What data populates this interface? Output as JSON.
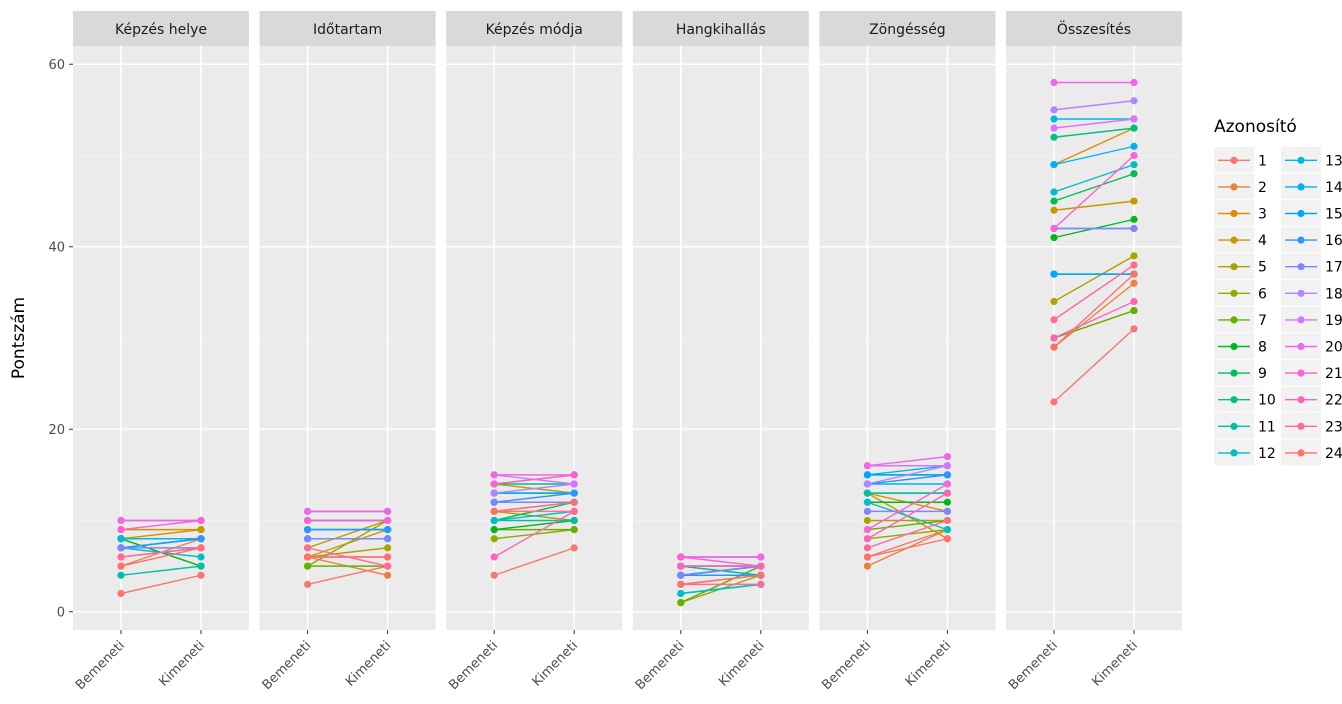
{
  "chart_data": {
    "type": "line",
    "ylabel": "Pontszám",
    "xlabel": "",
    "ylim": [
      -2,
      62
    ],
    "y_ticks": [
      0,
      20,
      40,
      60
    ],
    "x_categories": [
      "Bemeneti",
      "Kimeneti"
    ],
    "panels": [
      "Képzés helye",
      "Időtartam",
      "Képzés módja",
      "Hangkihallás",
      "Zöngésség",
      "Összesítés"
    ],
    "legend": {
      "title": "Azonosító",
      "position": "right",
      "ids": [
        "1",
        "2",
        "3",
        "4",
        "5",
        "6",
        "7",
        "8",
        "9",
        "10",
        "11",
        "12",
        "13",
        "14",
        "15",
        "16",
        "17",
        "18",
        "19",
        "20",
        "21",
        "22",
        "23",
        "24"
      ],
      "colors": [
        "#F8766D",
        "#EC8239",
        "#DB8E00",
        "#C79800",
        "#AEA200",
        "#8FAA00",
        "#64B200",
        "#00B81B",
        "#00BD5C",
        "#00C085",
        "#00C1A7",
        "#00BFC4",
        "#00BADE",
        "#00B2F3",
        "#00A6FF",
        "#2C96FF",
        "#7C86FF",
        "#B385FF",
        "#D874FD",
        "#EF67EB",
        "#FD61D3",
        "#FF62B7",
        "#FF6B94",
        "#FF716B"
      ]
    },
    "grid": true,
    "series": [
      {
        "name": "1",
        "values": {
          "Képzés helye": [
            2,
            4
          ],
          "Időtartam": [
            3,
            5
          ],
          "Képzés módja": [
            4,
            7
          ],
          "Hangkihallás": [
            3,
            4
          ],
          "Zöngésség": [
            6,
            9
          ],
          "Összesítés": [
            23,
            31
          ]
        }
      },
      {
        "name": "2",
        "values": {
          "Képzés helye": [
            5,
            8
          ],
          "Időtartam": [
            6,
            4
          ],
          "Képzés módja": [
            11,
            12
          ],
          "Hangkihallás": [
            4,
            4
          ],
          "Zöngésség": [
            5,
            9
          ],
          "Összesítés": [
            29,
            36
          ]
        }
      },
      {
        "name": "3",
        "values": {
          "Képzés helye": [
            9,
            9
          ],
          "Időtartam": [
            6,
            9
          ],
          "Képzés módja": [
            14,
            15
          ],
          "Hangkihallás": [
            5,
            5
          ],
          "Zöngésség": [
            13,
            11
          ],
          "Összesítés": [
            49,
            53
          ]
        }
      },
      {
        "name": "4",
        "values": {
          "Képzés helye": [
            8,
            9
          ],
          "Időtartam": [
            7,
            10
          ],
          "Képzés módja": [
            14,
            13
          ],
          "Hangkihallás": [
            5,
            5
          ],
          "Zöngésség": [
            13,
            8
          ],
          "Összesítés": [
            44,
            45
          ]
        }
      },
      {
        "name": "5",
        "values": {
          "Képzés helye": [
            8,
            8
          ],
          "Időtartam": [
            6,
            7
          ],
          "Képzés módja": [
            11,
            10
          ],
          "Hangkihallás": [
            1,
            5
          ],
          "Zöngésség": [
            10,
            10
          ],
          "Összesítés": [
            34,
            39
          ]
        }
      },
      {
        "name": "6",
        "values": {
          "Képzés helye": [
            8,
            8
          ],
          "Időtartam": [
            5,
            10
          ],
          "Képzés módja": [
            8,
            9
          ],
          "Hangkihallás": [
            1,
            4
          ],
          "Zöngésség": [
            8,
            9
          ],
          "Összesítés": [
            30,
            33
          ]
        }
      },
      {
        "name": "7",
        "values": {
          "Képzés helye": [
            8,
            5
          ],
          "Időtartam": [
            5,
            5
          ],
          "Képzés módja": [
            9,
            9
          ],
          "Hangkihallás": [
            1,
            5
          ],
          "Zöngésség": [
            9,
            10
          ],
          "Összesítés": [
            30,
            33
          ]
        }
      },
      {
        "name": "8",
        "values": {
          "Képzés helye": [
            8,
            5
          ],
          "Időtartam": [
            8,
            8
          ],
          "Képzés módja": [
            9,
            10
          ],
          "Hangkihallás": [
            4,
            5
          ],
          "Zöngésség": [
            12,
            12
          ],
          "Összesítés": [
            41,
            43
          ]
        }
      },
      {
        "name": "9",
        "values": {
          "Képzés helye": [
            8,
            8
          ],
          "Időtartam": [
            10,
            10
          ],
          "Képzés módja": [
            10,
            12
          ],
          "Hangkihallás": [
            4,
            5
          ],
          "Zöngésség": [
            13,
            13
          ],
          "Összesítés": [
            45,
            48
          ]
        }
      },
      {
        "name": "10",
        "values": {
          "Képzés helye": [
            8,
            8
          ],
          "Időtartam": [
            10,
            10
          ],
          "Képzés módja": [
            14,
            14
          ],
          "Hangkihallás": [
            5,
            4
          ],
          "Zöngésség": [
            15,
            15
          ],
          "Összesítés": [
            52,
            53
          ]
        }
      },
      {
        "name": "11",
        "values": {
          "Képzés helye": [
            4,
            5
          ],
          "Időtartam": [
            9,
            9
          ],
          "Képzés módja": [
            10,
            10
          ],
          "Hangkihallás": [
            2,
            3
          ],
          "Zöngésség": [
            13,
            13
          ],
          "Összesítés": [
            37,
            37
          ]
        }
      },
      {
        "name": "12",
        "values": {
          "Képzés helye": [
            7,
            6
          ],
          "Időtartam": [
            9,
            9
          ],
          "Képzés módja": [
            10,
            11
          ],
          "Hangkihallás": [
            2,
            3
          ],
          "Zöngésség": [
            12,
            9
          ],
          "Összesítés": [
            46,
            49
          ]
        }
      },
      {
        "name": "13",
        "values": {
          "Képzés helye": [
            8,
            8
          ],
          "Időtartam": [
            11,
            11
          ],
          "Képzés módja": [
            13,
            13
          ],
          "Hangkihallás": [
            5,
            5
          ],
          "Zöngésség": [
            15,
            16
          ],
          "Összesítés": [
            54,
            54
          ]
        }
      },
      {
        "name": "14",
        "values": {
          "Képzés helye": [
            7,
            8
          ],
          "Időtartam": [
            8,
            8
          ],
          "Képzés módja": [
            12,
            12
          ],
          "Hangkihallás": [
            4,
            5
          ],
          "Zöngésség": [
            14,
            14
          ],
          "Összesítés": [
            49,
            51
          ]
        }
      },
      {
        "name": "15",
        "values": {
          "Képzés helye": [
            7,
            8
          ],
          "Időtartam": [
            9,
            9
          ],
          "Képzés módja": [
            13,
            13
          ],
          "Hangkihallás": [
            4,
            4
          ],
          "Zöngésség": [
            15,
            15
          ],
          "Összesítés": [
            37,
            37
          ]
        }
      },
      {
        "name": "16",
        "values": {
          "Képzés helye": [
            7,
            8
          ],
          "Időtartam": [
            9,
            9
          ],
          "Képzés módja": [
            12,
            13
          ],
          "Hangkihallás": [
            4,
            4
          ],
          "Zöngésség": [
            14,
            15
          ],
          "Összesítés": [
            42,
            42
          ]
        }
      },
      {
        "name": "17",
        "values": {
          "Képzés helye": [
            7,
            7
          ],
          "Időtartam": [
            8,
            8
          ],
          "Képzés módja": [
            12,
            12
          ],
          "Hangkihallás": [
            4,
            5
          ],
          "Zöngésség": [
            11,
            11
          ],
          "Összesítés": [
            42,
            42
          ]
        }
      },
      {
        "name": "18",
        "values": {
          "Képzés helye": [
            10,
            10
          ],
          "Időtartam": [
            10,
            10
          ],
          "Képzés módja": [
            13,
            14
          ],
          "Hangkihallás": [
            6,
            6
          ],
          "Zöngésség": [
            14,
            16
          ],
          "Összesítés": [
            55,
            56
          ]
        }
      },
      {
        "name": "19",
        "values": {
          "Képzés helye": [
            10,
            10
          ],
          "Időtartam": [
            11,
            11
          ],
          "Képzés módja": [
            15,
            14
          ],
          "Hangkihallás": [
            6,
            6
          ],
          "Zöngésség": [
            16,
            16
          ],
          "Összesítés": [
            53,
            54
          ]
        }
      },
      {
        "name": "20",
        "values": {
          "Képzés helye": [
            10,
            10
          ],
          "Időtartam": [
            11,
            11
          ],
          "Képzés módja": [
            15,
            15
          ],
          "Hangkihallás": [
            6,
            6
          ],
          "Zöngésség": [
            16,
            17
          ],
          "Összesítés": [
            58,
            58
          ]
        }
      },
      {
        "name": "21",
        "values": {
          "Képzés helye": [
            9,
            10
          ],
          "Időtartam": [
            10,
            10
          ],
          "Képzés módja": [
            14,
            15
          ],
          "Hangkihallás": [
            6,
            5
          ],
          "Zöngésség": [
            9,
            14
          ],
          "Összesítés": [
            42,
            50
          ]
        }
      },
      {
        "name": "22",
        "values": {
          "Képzés helye": [
            6,
            7
          ],
          "Időtartam": [
            6,
            6
          ],
          "Képzés módja": [
            6,
            11
          ],
          "Hangkihallás": [
            5,
            5
          ],
          "Zöngésség": [
            8,
            13
          ],
          "Összesítés": [
            30,
            34
          ]
        }
      },
      {
        "name": "23",
        "values": {
          "Képzés helye": [
            6,
            7
          ],
          "Időtartam": [
            7,
            5
          ],
          "Képzés módja": [
            11,
            11
          ],
          "Hangkihallás": [
            3,
            3
          ],
          "Zöngésség": [
            7,
            10
          ],
          "Összesítés": [
            32,
            38
          ]
        }
      },
      {
        "name": "24",
        "values": {
          "Képzés helye": [
            5,
            7
          ],
          "Időtartam": [
            6,
            6
          ],
          "Képzés módja": [
            11,
            12
          ],
          "Hangkihallás": [
            3,
            4
          ],
          "Zöngésség": [
            6,
            8
          ],
          "Összesítés": [
            29,
            37
          ]
        }
      }
    ]
  }
}
